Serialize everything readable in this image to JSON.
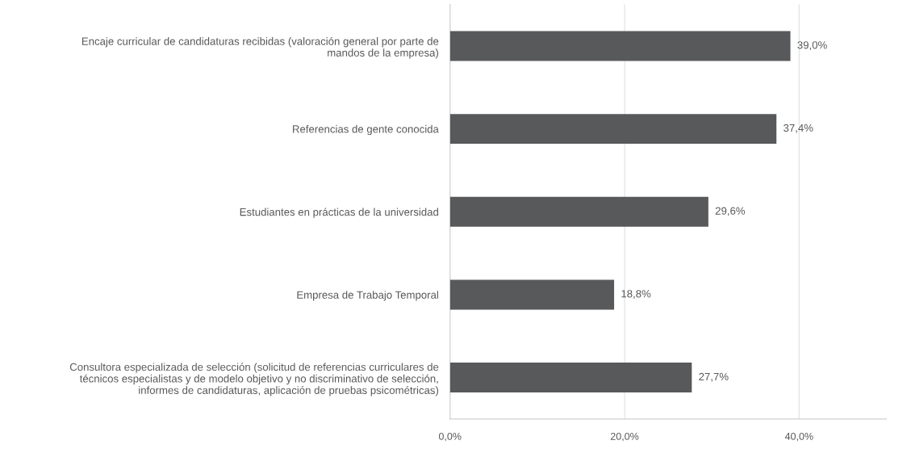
{
  "chart_data": {
    "type": "bar",
    "orientation": "horizontal",
    "categories": [
      "Encaje curricular de candidaturas recibidas (valoración general por parte de\nmandos de la empresa)",
      "Referencias de gente conocida",
      "Estudiantes en prácticas de la universidad",
      "Empresa de Trabajo Temporal",
      "Consultora especializada de selección (solicitud de referencias curriculares de\ntécnicos especialistas y de modelo objetivo y no discriminativo de selección,\ninformes de candidaturas, aplicación de pruebas psicométricas)"
    ],
    "values": [
      39.0,
      37.4,
      29.6,
      18.8,
      27.7
    ],
    "value_labels": [
      "39,0%",
      "37,4%",
      "29,6%",
      "18,8%",
      "27,7%"
    ],
    "color": "#58595b",
    "xlim": [
      0,
      50
    ],
    "xticks": [
      {
        "value": 0,
        "label": "0,0%"
      },
      {
        "value": 20,
        "label": "20,0%"
      },
      {
        "value": 40,
        "label": "40,0%"
      }
    ],
    "grid": "x",
    "legend": false
  }
}
